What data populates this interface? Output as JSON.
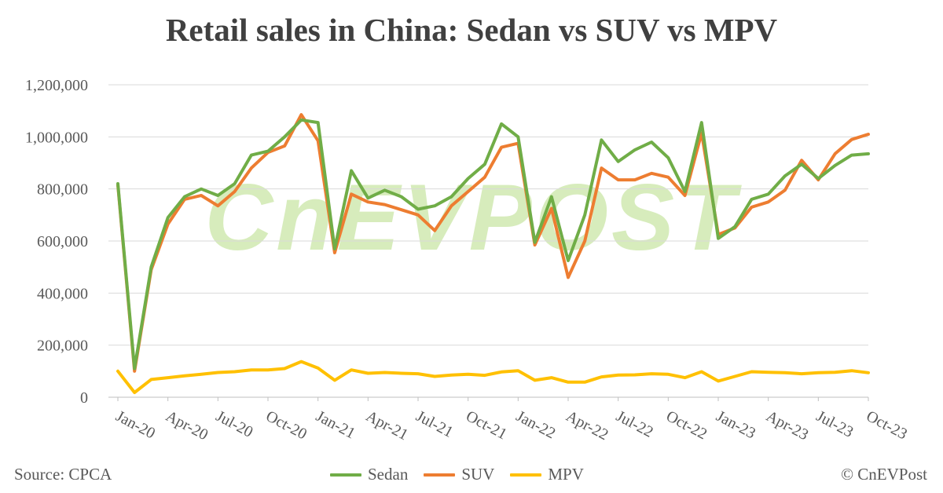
{
  "title": "Retail sales in China: Sedan vs SUV vs MPV",
  "source": "Source: CPCA",
  "copyright": "© CnEVPost",
  "watermark": "CnEVPOST",
  "colors": {
    "sedan": "#70AD47",
    "suv": "#ED7D31",
    "mpv": "#FFC000",
    "grid": "#d9d9d9",
    "axis": "#bfbfbf",
    "watermark": "#c9e6a6"
  },
  "chart_data": {
    "type": "line",
    "ylim": [
      0,
      1200000
    ],
    "y_ticks": [
      0,
      200000,
      400000,
      600000,
      800000,
      1000000,
      1200000
    ],
    "y_tick_labels": [
      "0",
      "200,000",
      "400,000",
      "600,000",
      "800,000",
      "1,000,000",
      "1,200,000"
    ],
    "x_tick_labels": [
      "Jan-20",
      "Apr-20",
      "Jul-20",
      "Oct-20",
      "Jan-21",
      "Apr-21",
      "Jul-21",
      "Oct-21",
      "Jan-22",
      "Apr-22",
      "Jul-22",
      "Oct-22",
      "Jan-23",
      "Apr-23",
      "Jul-23",
      "Oct-23"
    ],
    "x": [
      "Jan-20",
      "Feb-20",
      "Mar-20",
      "Apr-20",
      "May-20",
      "Jun-20",
      "Jul-20",
      "Aug-20",
      "Sep-20",
      "Oct-20",
      "Nov-20",
      "Dec-20",
      "Jan-21",
      "Feb-21",
      "Mar-21",
      "Apr-21",
      "May-21",
      "Jun-21",
      "Jul-21",
      "Aug-21",
      "Sep-21",
      "Oct-21",
      "Nov-21",
      "Dec-21",
      "Jan-22",
      "Feb-22",
      "Mar-22",
      "Apr-22",
      "May-22",
      "Jun-22",
      "Jul-22",
      "Aug-22",
      "Sep-22",
      "Oct-22",
      "Nov-22",
      "Dec-22",
      "Jan-23",
      "Feb-23",
      "Mar-23",
      "Apr-23",
      "May-23",
      "Jun-23",
      "Jul-23",
      "Aug-23",
      "Sep-23",
      "Oct-23"
    ],
    "grid": true,
    "legend": "bottom",
    "series": [
      {
        "name": "Sedan",
        "color": "#70AD47",
        "values": [
          820000,
          110000,
          500000,
          690000,
          770000,
          800000,
          775000,
          820000,
          930000,
          945000,
          1000000,
          1065000,
          1055000,
          570000,
          870000,
          765000,
          795000,
          770000,
          722000,
          735000,
          770000,
          840000,
          895000,
          1050000,
          1000000,
          595000,
          770000,
          525000,
          700000,
          988000,
          905000,
          950000,
          980000,
          920000,
          790000,
          1055000,
          610000,
          655000,
          760000,
          780000,
          850000,
          895000,
          840000,
          890000,
          930000,
          935000
        ]
      },
      {
        "name": "SUV",
        "color": "#ED7D31",
        "values": [
          815000,
          100000,
          490000,
          665000,
          760000,
          775000,
          735000,
          790000,
          880000,
          940000,
          965000,
          1085000,
          985000,
          555000,
          780000,
          750000,
          740000,
          720000,
          700000,
          640000,
          735000,
          790000,
          845000,
          960000,
          975000,
          585000,
          725000,
          460000,
          600000,
          880000,
          835000,
          835000,
          860000,
          845000,
          775000,
          1015000,
          625000,
          650000,
          730000,
          750000,
          795000,
          910000,
          835000,
          935000,
          990000,
          1010000
        ]
      },
      {
        "name": "MPV",
        "color": "#FFC000",
        "values": [
          100000,
          18000,
          68000,
          75000,
          82000,
          88000,
          95000,
          98000,
          105000,
          105000,
          110000,
          137000,
          112000,
          65000,
          105000,
          92000,
          95000,
          92000,
          90000,
          80000,
          85000,
          88000,
          84000,
          97000,
          102000,
          65000,
          75000,
          58000,
          58000,
          78000,
          85000,
          86000,
          90000,
          88000,
          75000,
          98000,
          62000,
          80000,
          98000,
          96000,
          94000,
          90000,
          94000,
          96000,
          102000,
          94000
        ]
      }
    ]
  }
}
